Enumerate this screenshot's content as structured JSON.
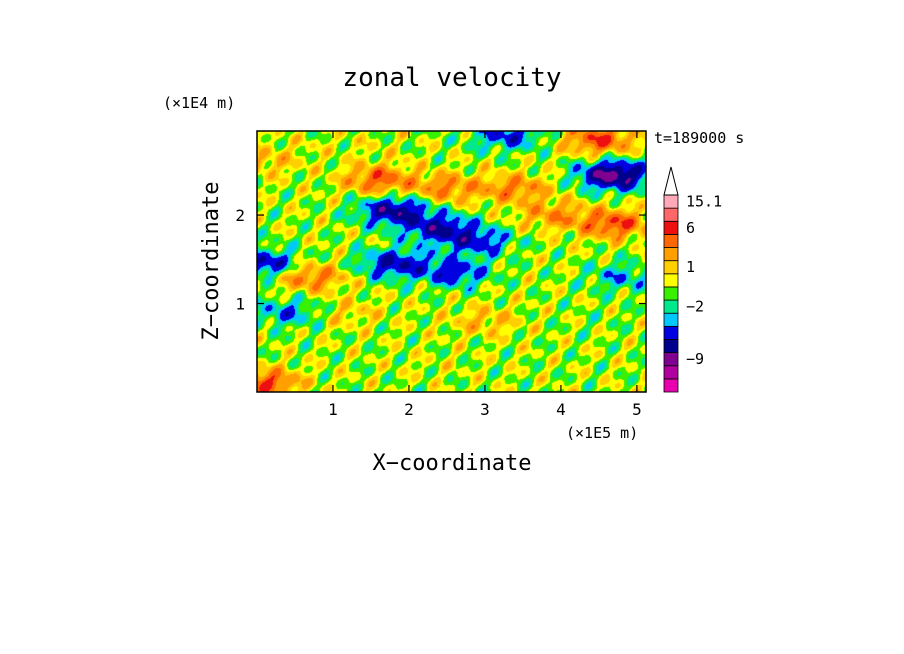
{
  "chart_data": {
    "type": "heatmap",
    "title": "zonal velocity",
    "xlabel": "X−coordinate",
    "ylabel": "Z−coordinate",
    "x_multiplier": "(×1E5 m)",
    "y_multiplier": "(×1E4 m)",
    "time_label": "t=189000 s",
    "xlim": [
      0,
      5.12
    ],
    "ylim": [
      0,
      2.95
    ],
    "x_ticks": [
      {
        "v": 1,
        "label": "1"
      },
      {
        "v": 2,
        "label": "2"
      },
      {
        "v": 3,
        "label": "3"
      },
      {
        "v": 4,
        "label": "4"
      },
      {
        "v": 5,
        "label": "5"
      }
    ],
    "y_ticks": [
      {
        "v": 1,
        "label": "1"
      },
      {
        "v": 2,
        "label": "2"
      }
    ],
    "colorbar": {
      "colors": [
        "#e800b0",
        "#b000a0",
        "#800090",
        "#00008c",
        "#0000e0",
        "#00c8ff",
        "#00e88c",
        "#38f000",
        "#ffff00",
        "#ffd000",
        "#ffa000",
        "#ff6800",
        "#ee1010",
        "#ff6868",
        "#ffa8b8"
      ],
      "labels": [
        {
          "value": "15.1",
          "at": 14
        },
        {
          "value": "6",
          "at": 12
        },
        {
          "value": "1",
          "at": 9
        },
        {
          "value": "−2",
          "at": 6
        },
        {
          "value": "−9",
          "at": 2
        }
      ],
      "extend_max": true
    },
    "blobs": [
      {
        "x": 1.6,
        "z": 2.4,
        "v": 4.5
      },
      {
        "x": 2.5,
        "z": 2.3,
        "v": 3.5
      },
      {
        "x": 3.4,
        "z": 2.3,
        "v": 3.5
      },
      {
        "x": 1.8,
        "z": 2.05,
        "v": -6
      },
      {
        "x": 2.4,
        "z": 1.85,
        "v": -5
      },
      {
        "x": 2.9,
        "z": 1.7,
        "v": -4
      },
      {
        "x": 1.8,
        "z": 1.45,
        "v": -5
      },
      {
        "x": 2.6,
        "z": 1.35,
        "v": -4
      },
      {
        "x": 4.7,
        "z": 2.45,
        "v": -8
      },
      {
        "x": 4.5,
        "z": 2.85,
        "v": 5
      },
      {
        "x": 3.3,
        "z": 2.9,
        "v": -4
      },
      {
        "x": 4.7,
        "z": 1.9,
        "v": 5
      },
      {
        "x": 0.7,
        "z": 1.3,
        "v": 4
      },
      {
        "x": 0.1,
        "z": 1.45,
        "v": -5
      },
      {
        "x": 0.4,
        "z": 0.9,
        "v": -3
      },
      {
        "x": 1.2,
        "z": 0.9,
        "v": 1.5
      },
      {
        "x": 3.0,
        "z": 0.8,
        "v": 2
      },
      {
        "x": 4.6,
        "z": 0.8,
        "v": -0.3
      },
      {
        "x": 2.3,
        "z": 0.3,
        "v": 0.3
      },
      {
        "x": 4.8,
        "z": 1.3,
        "v": -2.5
      },
      {
        "x": 0.1,
        "z": 2.6,
        "v": 2
      },
      {
        "x": 0.6,
        "z": 2.8,
        "v": 0.3
      },
      {
        "x": 0.1,
        "z": 0.1,
        "v": 5
      },
      {
        "x": 1.5,
        "z": 2.75,
        "v": 0.5
      },
      {
        "x": 3.9,
        "z": 2.0,
        "v": 3
      }
    ]
  }
}
